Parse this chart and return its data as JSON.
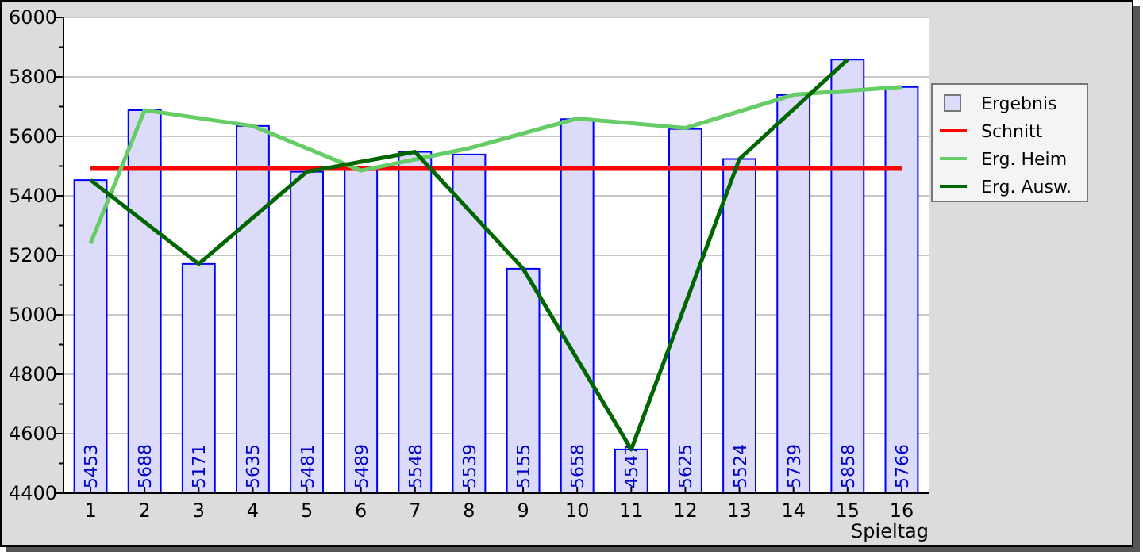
{
  "chart_data": {
    "type": "bar",
    "xlabel": "Spieltag",
    "x": [
      1,
      2,
      3,
      4,
      5,
      6,
      7,
      8,
      9,
      10,
      11,
      12,
      13,
      14,
      15,
      16
    ],
    "xlim": [
      0.5,
      16.5
    ],
    "xticks": [
      1,
      2,
      3,
      4,
      5,
      6,
      7,
      8,
      9,
      10,
      11,
      12,
      13,
      14,
      15,
      16
    ],
    "ylim": [
      4400,
      6000
    ],
    "yticks": [
      4400,
      {
        "value": 4500,
        "label": null
      },
      4600,
      {
        "value": 4700,
        "label": null
      },
      4800,
      {
        "value": 4900,
        "label": null
      },
      5000,
      {
        "value": 5100,
        "label": null
      },
      5200,
      {
        "value": 5300,
        "label": null
      },
      5400,
      {
        "value": 5500,
        "label": null
      },
      5600,
      {
        "value": 5700,
        "label": null
      },
      5800,
      {
        "value": 5900,
        "label": null
      },
      6000
    ],
    "grid": "y",
    "legend": "top right",
    "series": [
      {
        "name": "Ergebnis",
        "color": "#dcdcfa",
        "values": [
          5453,
          5688,
          5171,
          5635,
          5481,
          5489,
          5548,
          5539,
          5155,
          5658,
          4547,
          5625,
          5524,
          5739,
          5858,
          5766
        ],
        "value_labels": [
          "5453",
          "5688",
          "5171",
          "5635",
          "5481",
          "5489",
          "5548",
          "5539",
          "5155",
          "5658",
          "4547",
          "5625",
          "5524",
          "5739",
          "5858",
          "5766"
        ]
      },
      {
        "name": "Schnitt",
        "type": "line",
        "color": "#ff0000",
        "x": [
          1,
          16
        ],
        "values": [
          5492,
          5492
        ]
      },
      {
        "name": "Erg. Heim",
        "type": "line",
        "color": "#66cc66",
        "x": [
          1,
          2,
          4,
          6,
          8,
          10,
          12,
          14,
          16
        ],
        "values": [
          5240,
          5688,
          5635,
          5485,
          5560,
          5660,
          5628,
          5740,
          5766
        ]
      },
      {
        "name": "Erg. Ausw.",
        "type": "line",
        "color": "#006600",
        "x": [
          1,
          3,
          5,
          7,
          9,
          11,
          13,
          15
        ],
        "values": [
          5453,
          5171,
          5481,
          5548,
          5155,
          4547,
          5524,
          5858
        ]
      }
    ]
  }
}
